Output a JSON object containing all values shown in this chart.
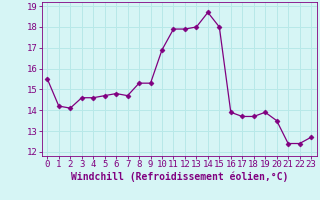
{
  "x": [
    0,
    1,
    2,
    3,
    4,
    5,
    6,
    7,
    8,
    9,
    10,
    11,
    12,
    13,
    14,
    15,
    16,
    17,
    18,
    19,
    20,
    21,
    22,
    23
  ],
  "y": [
    15.5,
    14.2,
    14.1,
    14.6,
    14.6,
    14.7,
    14.8,
    14.7,
    15.3,
    15.3,
    16.9,
    17.9,
    17.9,
    18.0,
    18.7,
    18.0,
    13.9,
    13.7,
    13.7,
    13.9,
    13.5,
    12.4,
    12.4,
    12.7
  ],
  "line_color": "#800080",
  "marker": "D",
  "marker_size": 2.5,
  "bg_color": "#d6f5f5",
  "grid_color": "#b8e8e8",
  "xlabel": "Windchill (Refroidissement éolien,°C)",
  "xlabel_fontsize": 7,
  "tick_fontsize": 6.5,
  "ylim": [
    11.8,
    19.2
  ],
  "xlim": [
    -0.5,
    23.5
  ],
  "yticks": [
    12,
    13,
    14,
    15,
    16,
    17,
    18,
    19
  ],
  "xticks": [
    0,
    1,
    2,
    3,
    4,
    5,
    6,
    7,
    8,
    9,
    10,
    11,
    12,
    13,
    14,
    15,
    16,
    17,
    18,
    19,
    20,
    21,
    22,
    23
  ]
}
